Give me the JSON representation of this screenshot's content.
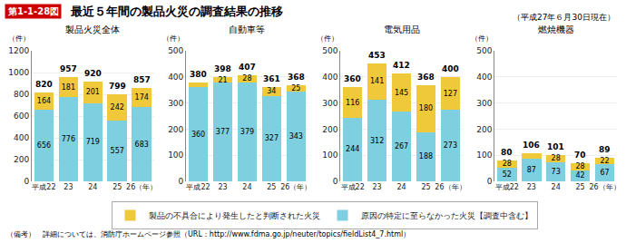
{
  "title": "最近５年間の製品火災の調査結果の推移",
  "subtitle": "（平成27年６月30日現在）",
  "annotations": [
    "第1-1-28図",
    "（備考）　詳細については、消防庁ホームページ参照（URL：http://www.fdma.go.jp/neuter/topics/fieldList4_7.html）"
  ],
  "chart_data": [
    {
      "type": "bar",
      "stacked": true,
      "title": "製品火災全体",
      "ylabel": "（件）",
      "categories": [
        "平成22",
        "23",
        "24",
        "25",
        "26（年）"
      ],
      "series": [
        {
          "name": "原因の特定に至らなかった火災【調査中含む】",
          "color": "#7ecfe0",
          "values": [
            656,
            776,
            719,
            557,
            683
          ]
        },
        {
          "name": "製品の不具合により発生したと判断された火災",
          "color": "#f0c93a",
          "values": [
            164,
            181,
            201,
            242,
            174
          ]
        }
      ],
      "totals": [
        820,
        957,
        920,
        799,
        857
      ],
      "ylim": [
        0,
        1200
      ],
      "yticks": [
        0,
        200,
        400,
        600,
        800,
        1000,
        1200
      ],
      "grid": true,
      "data_labels": true,
      "legend": "bottom"
    },
    {
      "type": "bar",
      "stacked": true,
      "title": "自動車等",
      "ylabel": "（件）",
      "categories": [
        "平成22",
        "23",
        "24",
        "25",
        "26（年）"
      ],
      "series": [
        {
          "name": "原因の特定に至らなかった火災【調査中含む】",
          "color": "#7ecfe0",
          "values": [
            360,
            377,
            379,
            327,
            343
          ]
        },
        {
          "name": "製品の不具合により発生したと判断された火災",
          "color": "#f0c93a",
          "values": [
            20,
            21,
            28,
            34,
            25
          ],
          "value_labels": [
            null,
            "21",
            "28",
            "34",
            "25"
          ]
        }
      ],
      "totals": [
        380,
        398,
        407,
        361,
        368
      ],
      "ylim": [
        0,
        500
      ],
      "yticks": [
        0,
        100,
        200,
        300,
        400,
        500
      ],
      "grid": true,
      "data_labels": true,
      "legend": "bottom"
    },
    {
      "type": "bar",
      "stacked": true,
      "title": "電気用品",
      "ylabel": "（件）",
      "categories": [
        "平成22",
        "23",
        "24",
        "25",
        "26（年）"
      ],
      "series": [
        {
          "name": "原因の特定に至らなかった火災【調査中含む】",
          "color": "#7ecfe0",
          "values": [
            244,
            312,
            267,
            188,
            273
          ]
        },
        {
          "name": "製品の不具合により発生したと判断された火災",
          "color": "#f0c93a",
          "values": [
            116,
            141,
            145,
            180,
            127
          ]
        }
      ],
      "totals": [
        360,
        453,
        412,
        368,
        400
      ],
      "ylim": [
        0,
        500
      ],
      "yticks": [
        0,
        100,
        200,
        300,
        400,
        500
      ],
      "grid": true,
      "data_labels": true,
      "legend": "bottom"
    },
    {
      "type": "bar",
      "stacked": true,
      "title": "燃焼機器",
      "ylabel": "（件）",
      "categories": [
        "平成22",
        "23",
        "24",
        "25",
        "26（年）"
      ],
      "series": [
        {
          "name": "原因の特定に至らなかった火災【調査中含む】",
          "color": "#7ecfe0",
          "values": [
            52,
            87,
            73,
            42,
            67
          ]
        },
        {
          "name": "製品の不具合により発生したと判断された火災",
          "color": "#f0c93a",
          "values": [
            28,
            19,
            28,
            28,
            22
          ],
          "value_labels": [
            "28",
            null,
            "28",
            "28",
            "22"
          ]
        }
      ],
      "totals": [
        80,
        106,
        101,
        70,
        89
      ],
      "ylim": [
        0,
        500
      ],
      "yticks": [
        0,
        100,
        200,
        300,
        400,
        500
      ],
      "grid": true,
      "data_labels": true,
      "legend": "bottom"
    }
  ]
}
